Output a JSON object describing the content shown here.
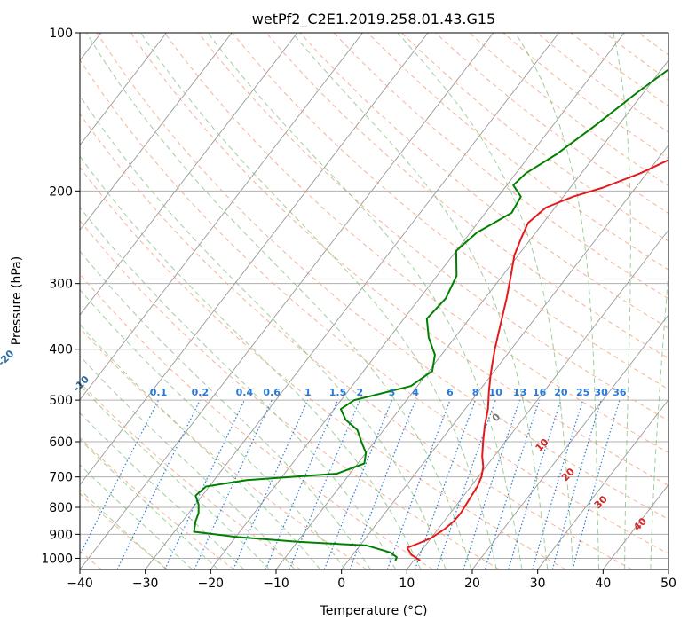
{
  "chart_data": {
    "type": "line",
    "subtype": "skew-t log-p diagram",
    "title": "wetPf2_C2E1.2019.258.01.43.G15",
    "xlabel": "Temperature (°C)",
    "ylabel": "Pressure (hPa)",
    "xlim": [
      -40,
      50
    ],
    "ylim": [
      1050,
      100
    ],
    "y_scale": "log",
    "grid": true,
    "x_ticks": [
      "−40",
      "−30",
      "−20",
      "−10",
      "0",
      "10",
      "20",
      "30",
      "40",
      "50"
    ],
    "y_ticks": [
      "100",
      "200",
      "300",
      "400",
      "500",
      "600",
      "700",
      "800",
      "900",
      "1000"
    ],
    "series": [
      {
        "color": "#e41a1c",
        "points": [
          [
            11,
            1010
          ],
          [
            9,
            985
          ],
          [
            7.5,
            955
          ],
          [
            8.5,
            940
          ],
          [
            10,
            915
          ],
          [
            11,
            880
          ],
          [
            11.5,
            850
          ],
          [
            11.6,
            820
          ],
          [
            11.4,
            790
          ],
          [
            11.2,
            760
          ],
          [
            11,
            730
          ],
          [
            10.5,
            700
          ],
          [
            9.6,
            670
          ],
          [
            8.2,
            640
          ],
          [
            6.6,
            600
          ],
          [
            5,
            560
          ],
          [
            3.5,
            520
          ],
          [
            1.5,
            480
          ],
          [
            0,
            450
          ],
          [
            -1,
            430
          ],
          [
            -2.5,
            400
          ],
          [
            -4.5,
            360
          ],
          [
            -6.7,
            320
          ],
          [
            -8.7,
            290
          ],
          [
            -10.6,
            265
          ],
          [
            -11.6,
            245
          ],
          [
            -12.3,
            230
          ],
          [
            -11.4,
            215
          ],
          [
            -8.5,
            205
          ],
          [
            -5,
            197
          ],
          [
            -1,
            185
          ],
          [
            3,
            170
          ],
          [
            6.5,
            150
          ],
          [
            9.5,
            130
          ],
          [
            11.3,
            118
          ],
          [
            14,
            108
          ],
          [
            15.5,
            100
          ]
        ]
      },
      {
        "color": "#008000",
        "points": [
          [
            7.2,
            1010
          ],
          [
            7,
            995
          ],
          [
            5.5,
            975
          ],
          [
            1,
            945
          ],
          [
            -10,
            930
          ],
          [
            -20,
            910
          ],
          [
            -27,
            890
          ],
          [
            -28,
            850
          ],
          [
            -28.5,
            820
          ],
          [
            -29.5,
            790
          ],
          [
            -31,
            760
          ],
          [
            -30.5,
            730
          ],
          [
            -25,
            710
          ],
          [
            -12,
            690
          ],
          [
            -9,
            660
          ],
          [
            -10,
            630
          ],
          [
            -12,
            600
          ],
          [
            -14,
            570
          ],
          [
            -17,
            545
          ],
          [
            -19,
            520
          ],
          [
            -18,
            500
          ],
          [
            -11,
            470
          ],
          [
            -9.5,
            440
          ],
          [
            -11,
            410
          ],
          [
            -14,
            380
          ],
          [
            -16.5,
            350
          ],
          [
            -16,
            320
          ],
          [
            -17,
            290
          ],
          [
            -20,
            260
          ],
          [
            -19,
            240
          ],
          [
            -16,
            220
          ],
          [
            -16.5,
            205
          ],
          [
            -19,
            195
          ],
          [
            -18.5,
            185
          ],
          [
            -16,
            170
          ],
          [
            -13.5,
            150
          ],
          [
            -11,
            130
          ],
          [
            -8.5,
            115
          ],
          [
            -6.5,
            105
          ],
          [
            -5,
            100
          ]
        ]
      }
    ],
    "dry_adiabats_C": [
      -100,
      -90,
      -80,
      -70,
      -60,
      -50,
      -40,
      -30,
      -20,
      -10
    ],
    "moist_adiabats_C": [
      "0",
      "10",
      "20",
      "30",
      "40"
    ],
    "mixing_ratios_gkg": [
      "0.1",
      "0.2",
      "0.4",
      "0.6",
      "1",
      "1.5",
      "2",
      "3",
      "4",
      "6",
      "8",
      "10",
      "13",
      "16",
      "20",
      "25",
      "30",
      "36"
    ],
    "colors": {
      "temperature": "#e41a1c",
      "dewpoint": "#008000",
      "isotherm": "#999999",
      "dry_adiabat": "#f4a582",
      "moist_adiabat": "#7fbf7b",
      "mixing_ratio": "#2a7bd6",
      "dry_label": "#2b6ca3",
      "moist_label": "#d62728"
    }
  }
}
